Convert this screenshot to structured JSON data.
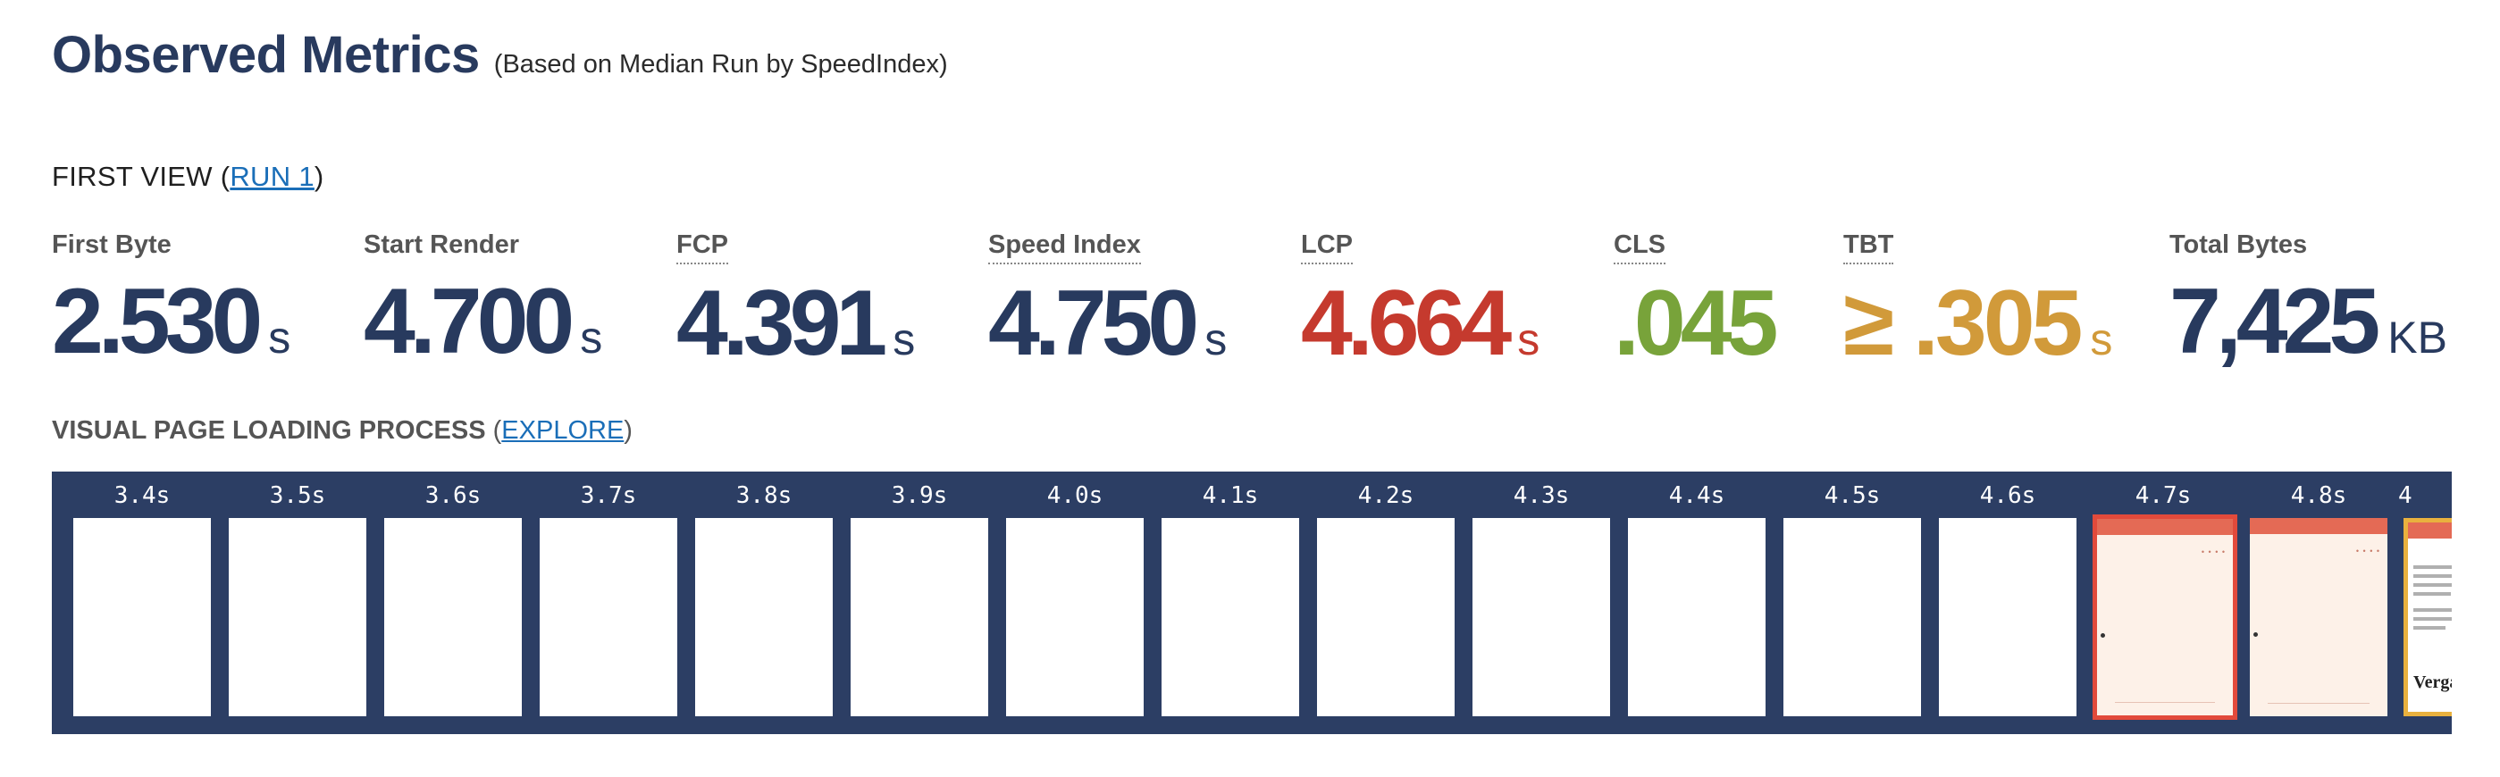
{
  "header": {
    "title": "Observed Metrics",
    "subtitle": "(Based on Median Run by SpeedIndex)"
  },
  "first_view": {
    "label": "FIRST VIEW (",
    "run_link": "RUN 1",
    "close": ")"
  },
  "metrics": [
    {
      "label": "First Byte",
      "value": "2.530",
      "unit": "s",
      "color": "#283a5e"
    },
    {
      "label": "Start Render",
      "value": "4.700",
      "unit": "s",
      "color": "#283a5e"
    },
    {
      "label": "FCP",
      "value": "4.391",
      "unit": "s",
      "color": "#283a5e"
    },
    {
      "label": "Speed Index",
      "value": "4.750",
      "unit": "s",
      "color": "#283a5e"
    },
    {
      "label": "LCP",
      "value": "4.664",
      "unit": "s",
      "color": "#c53a2e"
    },
    {
      "label": "CLS",
      "value": ".045",
      "unit": "",
      "color": "#78a33a"
    },
    {
      "label": "TBT",
      "value": "≥ .305",
      "unit": "s",
      "color": "#d19a3a"
    },
    {
      "label": "Total Bytes",
      "value": "7,425",
      "unit": "KB",
      "color": "#283a5e"
    }
  ],
  "visual_progress": {
    "label": "VISUAL PAGE LOADING PROCESS",
    "open": "(",
    "explore_link": "EXPLORE",
    "close": ")"
  },
  "filmstrip": {
    "frames": [
      {
        "time": "3.4s",
        "state": "blank"
      },
      {
        "time": "3.5s",
        "state": "blank"
      },
      {
        "time": "3.6s",
        "state": "blank"
      },
      {
        "time": "3.7s",
        "state": "blank"
      },
      {
        "time": "3.8s",
        "state": "blank"
      },
      {
        "time": "3.9s",
        "state": "blank"
      },
      {
        "time": "4.0s",
        "state": "blank"
      },
      {
        "time": "4.1s",
        "state": "blank"
      },
      {
        "time": "4.2s",
        "state": "blank"
      },
      {
        "time": "4.3s",
        "state": "blank"
      },
      {
        "time": "4.4s",
        "state": "blank"
      },
      {
        "time": "4.5s",
        "state": "blank"
      },
      {
        "time": "4.6s",
        "state": "blank"
      },
      {
        "time": "4.7s",
        "state": "painted-highlight"
      },
      {
        "time": "4.8s",
        "state": "painted"
      },
      {
        "time": "4",
        "state": "partial"
      }
    ],
    "frame_heading_text": "Verga"
  }
}
